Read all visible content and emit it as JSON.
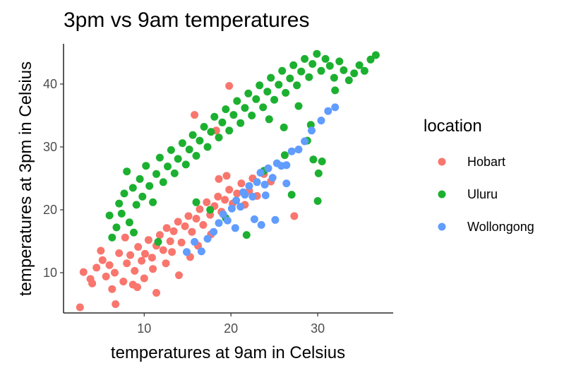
{
  "chart_data": {
    "type": "scatter",
    "title": "3pm vs 9am temperatures",
    "xlabel": "temperatures at 9am in Celsius",
    "ylabel": "temperatures at 3pm in Celsius",
    "xlim": [
      0.7,
      38.7
    ],
    "ylim": [
      3.6,
      46.4
    ],
    "x_ticks": [
      10,
      20,
      30
    ],
    "y_ticks": [
      10,
      20,
      30,
      40
    ],
    "grid": false,
    "legend": {
      "title": "location",
      "position": "right",
      "entries": [
        "Hobart",
        "Uluru",
        "Wollongong"
      ]
    },
    "series": [
      {
        "name": "Hobart",
        "color": "#F8766D",
        "points": [
          [
            2.6,
            4.5
          ],
          [
            6.7,
            5.0
          ],
          [
            11.4,
            6.8
          ],
          [
            3.0,
            10.1
          ],
          [
            3.8,
            9.0
          ],
          [
            4.5,
            10.8
          ],
          [
            5.2,
            12.0
          ],
          [
            5.6,
            9.4
          ],
          [
            6.0,
            11.2
          ],
          [
            6.6,
            10.0
          ],
          [
            7.1,
            13.1
          ],
          [
            7.6,
            8.6
          ],
          [
            8.0,
            11.5
          ],
          [
            8.4,
            12.8
          ],
          [
            8.9,
            10.3
          ],
          [
            9.3,
            14.1
          ],
          [
            9.7,
            11.9
          ],
          [
            10.1,
            13.0
          ],
          [
            10.5,
            15.2
          ],
          [
            10.9,
            12.4
          ],
          [
            11.4,
            14.3
          ],
          [
            11.8,
            16.0
          ],
          [
            12.2,
            13.6
          ],
          [
            12.6,
            17.1
          ],
          [
            13.0,
            15.0
          ],
          [
            13.4,
            16.6
          ],
          [
            13.9,
            18.1
          ],
          [
            14.3,
            14.8
          ],
          [
            14.7,
            17.4
          ],
          [
            15.1,
            19.0
          ],
          [
            15.5,
            16.5
          ],
          [
            16.0,
            18.6
          ],
          [
            16.4,
            20.1
          ],
          [
            16.8,
            17.6
          ],
          [
            17.2,
            21.2
          ],
          [
            17.6,
            19.2
          ],
          [
            18.1,
            20.6
          ],
          [
            18.5,
            22.1
          ],
          [
            18.9,
            19.7
          ],
          [
            19.3,
            21.6
          ],
          [
            19.8,
            23.2
          ],
          [
            20.2,
            21.0
          ],
          [
            20.7,
            22.6
          ],
          [
            21.2,
            24.2
          ],
          [
            21.6,
            20.8
          ],
          [
            22.1,
            23.0
          ],
          [
            22.5,
            25.0
          ],
          [
            23.0,
            22.2
          ],
          [
            23.8,
            25.7
          ],
          [
            24.6,
            24.5
          ],
          [
            27.3,
            19.0
          ],
          [
            19.8,
            39.7
          ],
          [
            10.0,
            9.1
          ],
          [
            9.2,
            7.7
          ],
          [
            12.5,
            11.5
          ],
          [
            15.3,
            12.5
          ],
          [
            4.0,
            8.3
          ],
          [
            5.0,
            13.5
          ],
          [
            16.2,
            14.3
          ],
          [
            15.8,
            35.1
          ],
          [
            18.3,
            32.6
          ],
          [
            14.0,
            9.6
          ],
          [
            7.8,
            15.6
          ],
          [
            13.2,
            13.3
          ],
          [
            17.7,
            16.1
          ],
          [
            6.3,
            7.4
          ],
          [
            8.7,
            8.1
          ],
          [
            11.0,
            10.6
          ],
          [
            18.6,
            24.9
          ],
          [
            19.5,
            25.4
          ]
        ]
      },
      {
        "name": "Uluru",
        "color": "#1CB030",
        "points": [
          [
            6.0,
            19.1
          ],
          [
            6.3,
            15.6
          ],
          [
            6.8,
            17.2
          ],
          [
            7.1,
            21.0
          ],
          [
            7.4,
            19.4
          ],
          [
            7.7,
            22.6
          ],
          [
            8.0,
            26.1
          ],
          [
            8.3,
            18.0
          ],
          [
            8.7,
            23.5
          ],
          [
            9.1,
            20.8
          ],
          [
            9.5,
            24.9
          ],
          [
            9.8,
            22.1
          ],
          [
            10.2,
            27.0
          ],
          [
            10.6,
            23.8
          ],
          [
            11.0,
            21.2
          ],
          [
            11.4,
            25.7
          ],
          [
            11.8,
            28.3
          ],
          [
            12.2,
            24.4
          ],
          [
            12.7,
            26.9
          ],
          [
            13.1,
            29.5
          ],
          [
            13.5,
            25.8
          ],
          [
            13.9,
            28.1
          ],
          [
            14.4,
            30.6
          ],
          [
            14.8,
            27.2
          ],
          [
            15.2,
            29.6
          ],
          [
            15.6,
            31.9
          ],
          [
            16.0,
            28.6
          ],
          [
            16.4,
            31.0
          ],
          [
            16.9,
            33.2
          ],
          [
            17.3,
            30.0
          ],
          [
            17.7,
            32.4
          ],
          [
            18.1,
            34.8
          ],
          [
            18.6,
            31.5
          ],
          [
            19.0,
            33.9
          ],
          [
            19.4,
            36.0
          ],
          [
            19.8,
            32.6
          ],
          [
            20.3,
            35.1
          ],
          [
            20.7,
            37.3
          ],
          [
            21.1,
            33.8
          ],
          [
            21.6,
            36.2
          ],
          [
            22.0,
            38.5
          ],
          [
            22.4,
            35.0
          ],
          [
            22.9,
            37.6
          ],
          [
            23.3,
            39.8
          ],
          [
            23.7,
            36.3
          ],
          [
            24.2,
            38.8
          ],
          [
            24.6,
            41.0
          ],
          [
            25.0,
            37.5
          ],
          [
            25.5,
            39.9
          ],
          [
            25.9,
            42.1
          ],
          [
            26.3,
            38.6
          ],
          [
            26.8,
            40.9
          ],
          [
            27.2,
            43.0
          ],
          [
            27.6,
            39.8
          ],
          [
            28.1,
            42.0
          ],
          [
            28.5,
            44.0
          ],
          [
            29.0,
            41.1
          ],
          [
            29.4,
            43.2
          ],
          [
            29.9,
            44.8
          ],
          [
            30.4,
            42.1
          ],
          [
            30.9,
            44.0
          ],
          [
            31.4,
            42.9
          ],
          [
            31.9,
            41.0
          ],
          [
            32.5,
            43.6
          ],
          [
            33.0,
            42.2
          ],
          [
            33.6,
            40.6
          ],
          [
            34.2,
            41.7
          ],
          [
            34.8,
            43.0
          ],
          [
            35.4,
            42.1
          ],
          [
            36.1,
            43.9
          ],
          [
            36.7,
            44.6
          ],
          [
            24.4,
            34.4
          ],
          [
            26.1,
            33.1
          ],
          [
            27.8,
            36.5
          ],
          [
            30.5,
            27.7
          ],
          [
            30.0,
            21.4
          ],
          [
            30.1,
            25.8
          ],
          [
            26.2,
            28.7
          ],
          [
            29.5,
            28.0
          ],
          [
            27.0,
            22.4
          ],
          [
            21.8,
            16.0
          ],
          [
            17.6,
            20.0
          ],
          [
            16.0,
            21.2
          ],
          [
            23.8,
            26.2
          ],
          [
            28.8,
            31.0
          ],
          [
            11.6,
            14.9
          ],
          [
            8.8,
            16.4
          ],
          [
            19.4,
            18.7
          ],
          [
            32.0,
            39.0
          ],
          [
            29.2,
            33.5
          ]
        ]
      },
      {
        "name": "Wollongong",
        "color": "#619CFF",
        "points": [
          [
            14.9,
            13.3
          ],
          [
            15.8,
            14.9
          ],
          [
            16.6,
            13.4
          ],
          [
            17.3,
            15.4
          ],
          [
            18.0,
            16.5
          ],
          [
            18.6,
            17.9
          ],
          [
            19.1,
            19.3
          ],
          [
            19.6,
            18.3
          ],
          [
            20.1,
            20.2
          ],
          [
            20.6,
            21.5
          ],
          [
            21.1,
            20.5
          ],
          [
            21.6,
            22.4
          ],
          [
            22.1,
            23.8
          ],
          [
            22.5,
            22.1
          ],
          [
            23.0,
            24.4
          ],
          [
            23.4,
            25.9
          ],
          [
            23.9,
            24.0
          ],
          [
            24.3,
            26.6
          ],
          [
            24.8,
            25.1
          ],
          [
            25.3,
            27.4
          ],
          [
            25.8,
            27.0
          ],
          [
            26.4,
            27.1
          ],
          [
            27.0,
            29.3
          ],
          [
            27.8,
            29.6
          ],
          [
            28.5,
            30.9
          ],
          [
            29.3,
            32.6
          ],
          [
            30.4,
            34.2
          ],
          [
            31.2,
            35.7
          ],
          [
            32.0,
            36.3
          ],
          [
            22.7,
            18.5
          ],
          [
            23.5,
            17.6
          ],
          [
            25.1,
            18.4
          ],
          [
            26.4,
            24.2
          ],
          [
            24.0,
            22.3
          ],
          [
            21.4,
            22.8
          ],
          [
            20.5,
            17.1
          ]
        ]
      }
    ]
  }
}
